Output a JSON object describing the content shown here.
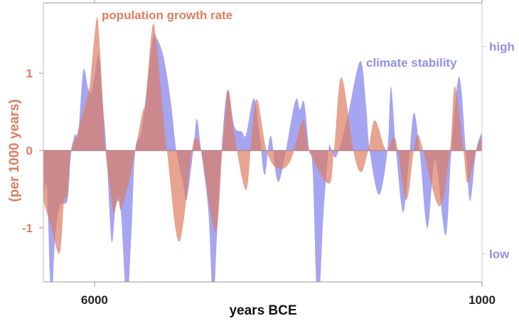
{
  "chart_data": {
    "type": "area",
    "xlabel": "years BCE",
    "ylabel": "(per 1000 years)",
    "xlim": [
      6660,
      1000
    ],
    "ylim": [
      -1.7,
      1.91
    ],
    "y2lim": [
      -1.27,
      1.42
    ],
    "x_ticks": [
      6000,
      1000
    ],
    "y_ticks": [
      1,
      0,
      -1
    ],
    "y2_ticks": [
      {
        "value": 1,
        "label": "high"
      },
      {
        "value": -1,
        "label": "low"
      }
    ],
    "grid": false,
    "legend": "inline labels",
    "colors": {
      "population": "#dd7d63",
      "climate": "#8f8fee",
      "axis": "#999999",
      "right_axis": "#c8c8f0"
    },
    "series": [
      {
        "name": "population growth rate",
        "axis": "left",
        "x": [
          6660,
          6560,
          6450,
          6395,
          6350,
          6305,
          6230,
          6075,
          6030,
          5970,
          5935,
          5890,
          5860,
          5795,
          5750,
          5695,
          5660,
          5565,
          5475,
          5385,
          5340,
          5255,
          5200,
          5125,
          5065,
          4910,
          4745,
          4690,
          4625,
          4440,
          4350,
          4275,
          4195,
          4045,
          3965,
          3900,
          3780,
          3640,
          3475,
          3310,
          3230,
          2980,
          2910,
          2815,
          2660,
          2560,
          2470,
          2385,
          2265,
          2220,
          2140,
          2085,
          1975,
          1880,
          1825,
          1760,
          1550,
          1415,
          1350,
          1240,
          1185,
          1075,
          1000
        ],
        "values": [
          -0.65,
          -0.99,
          -1.33,
          -0.67,
          -0.58,
          0,
          0.2,
          0.77,
          1.17,
          1.72,
          1.39,
          0.57,
          0,
          -0.53,
          -0.81,
          -0.6,
          -0.76,
          -0.44,
          0,
          0.48,
          0.66,
          1.6,
          1.39,
          0.57,
          0,
          -1.18,
          0,
          0.15,
          0,
          -1.05,
          0,
          0.78,
          0.2,
          -0.51,
          0.29,
          0.66,
          0,
          -0.23,
          -0.14,
          0.39,
          0,
          -0.43,
          0,
          0.95,
          0,
          -0.28,
          0,
          0.39,
          0.06,
          0,
          0.17,
          0,
          -0.64,
          0,
          0.2,
          0,
          -0.72,
          0,
          0.83,
          0,
          -0.42,
          0,
          0.2
        ]
      },
      {
        "name": "climate stability",
        "axis": "right",
        "x": [
          6660,
          6615,
          6560,
          6505,
          6440,
          6350,
          6305,
          6255,
          6210,
          6145,
          6085,
          6045,
          6000,
          5945,
          5890,
          5845,
          5780,
          5725,
          5660,
          5585,
          5525,
          5475,
          5385,
          5255,
          5200,
          5110,
          5020,
          4945,
          4855,
          4810,
          4725,
          4680,
          4625,
          4530,
          4470,
          4420,
          4360,
          4285,
          4195,
          4100,
          4045,
          3945,
          3870,
          3805,
          3725,
          3620,
          3415,
          3350,
          3295,
          3230,
          3185,
          3120,
          3045,
          2980,
          2955,
          2890,
          2815,
          2725,
          2570,
          2495,
          2450,
          2330,
          2220,
          2175,
          2110,
          2020,
          1945,
          1880,
          1805,
          1705,
          1605,
          1470,
          1395,
          1295,
          1210,
          1155,
          1075,
          1000
        ],
        "values": [
          -0.49,
          -0.36,
          -1.42,
          -0.81,
          -0.53,
          -0.48,
          -0.05,
          0.15,
          0.17,
          0.77,
          0.6,
          0.56,
          0.7,
          0.92,
          0.42,
          0,
          -0.88,
          -0.53,
          -0.6,
          -1.49,
          -0.81,
          0,
          0.22,
          1.04,
          1.08,
          0.9,
          0.49,
          0,
          -0.33,
          -0.47,
          0,
          0.3,
          0,
          -0.6,
          -1.49,
          -0.81,
          0,
          0.58,
          0.23,
          0.18,
          0.15,
          0.5,
          0.15,
          -0.24,
          0.14,
          -0.3,
          0.46,
          0.39,
          0.46,
          0,
          -0.19,
          -1.56,
          -0.6,
          0,
          0.03,
          -0.07,
          0.08,
          0.36,
          0.86,
          0.42,
          0,
          -0.43,
          0,
          0.61,
          0,
          -0.6,
          -0.12,
          0.36,
          0,
          -0.75,
          -0.09,
          -0.82,
          0,
          0.71,
          0,
          -0.49,
          0,
          0.18
        ]
      }
    ]
  }
}
